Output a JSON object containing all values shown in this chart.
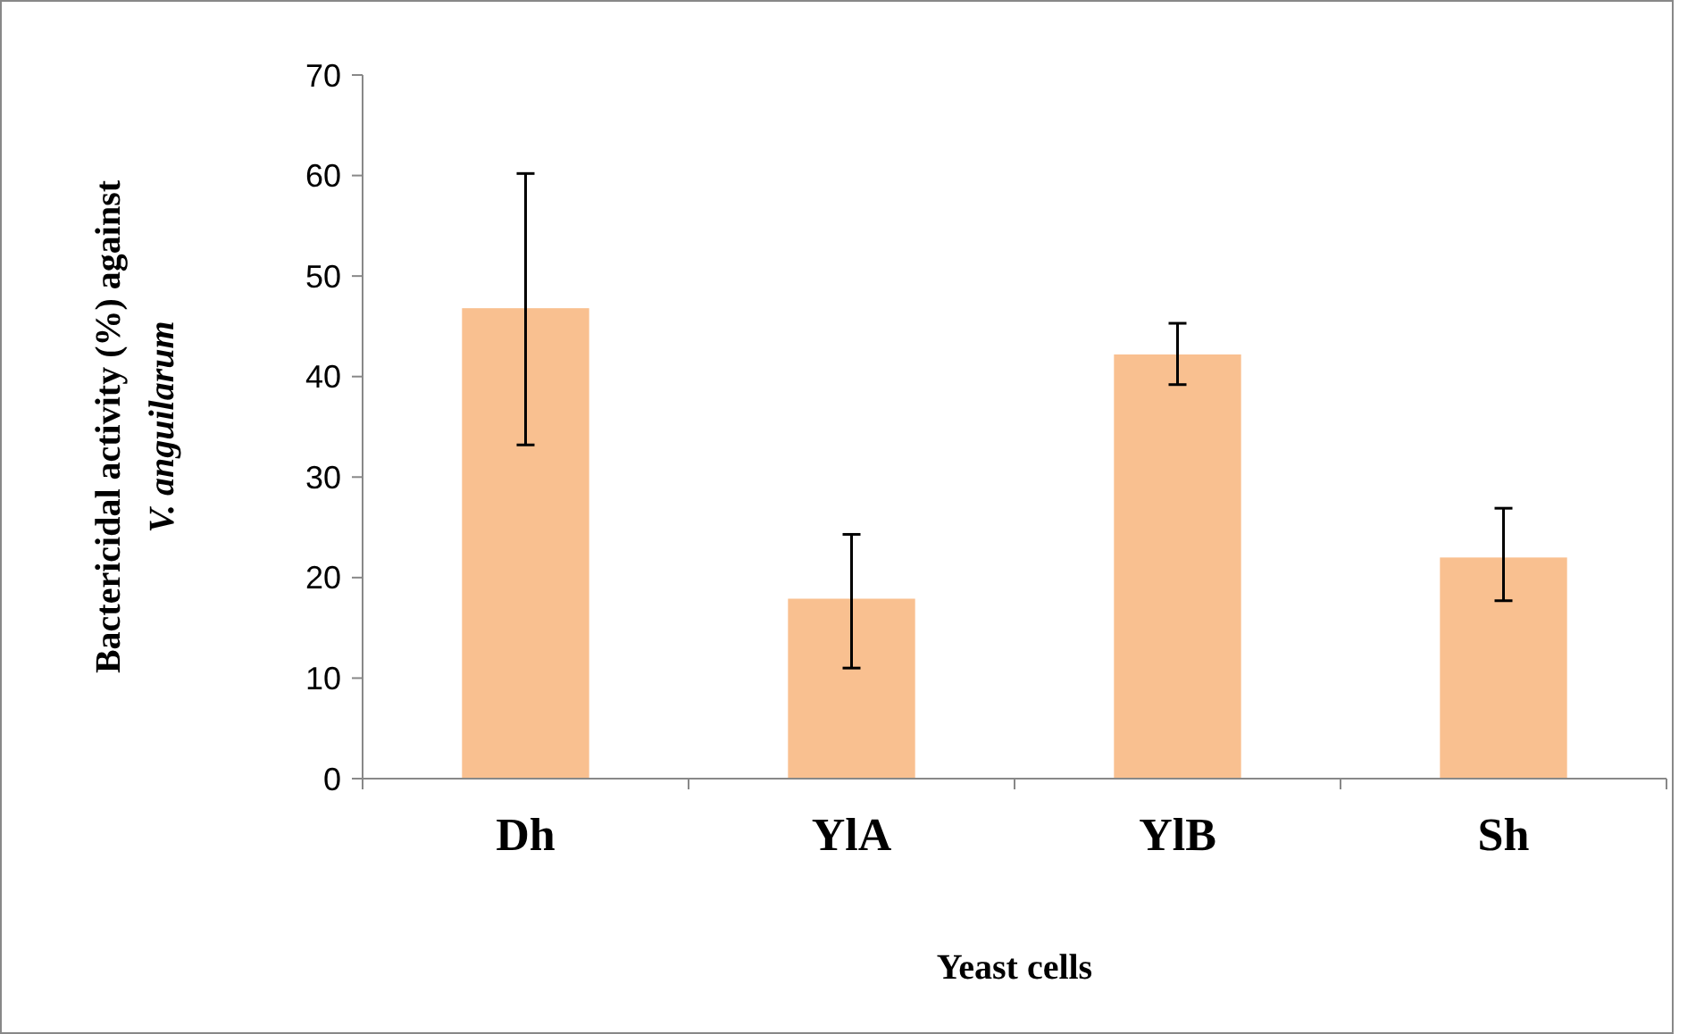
{
  "chart_data": {
    "type": "bar",
    "xlabel": "Yeast cells",
    "ylabel": "Bactericidal activity (%) against\nV. anguilarum",
    "categories": [
      "Dh",
      "YlA",
      "YlB",
      "Sh"
    ],
    "values": [
      46.8,
      17.9,
      42.2,
      22.0
    ],
    "errors": [
      [
        33.2,
        60.2
      ],
      [
        11.0,
        24.3
      ],
      [
        39.2,
        45.3
      ],
      [
        17.7,
        26.9
      ]
    ],
    "color": "#f9c090",
    "ylim": [
      0,
      70
    ],
    "yticks": [
      0,
      10,
      20,
      30,
      40,
      50,
      60,
      70
    ],
    "grid": false
  }
}
